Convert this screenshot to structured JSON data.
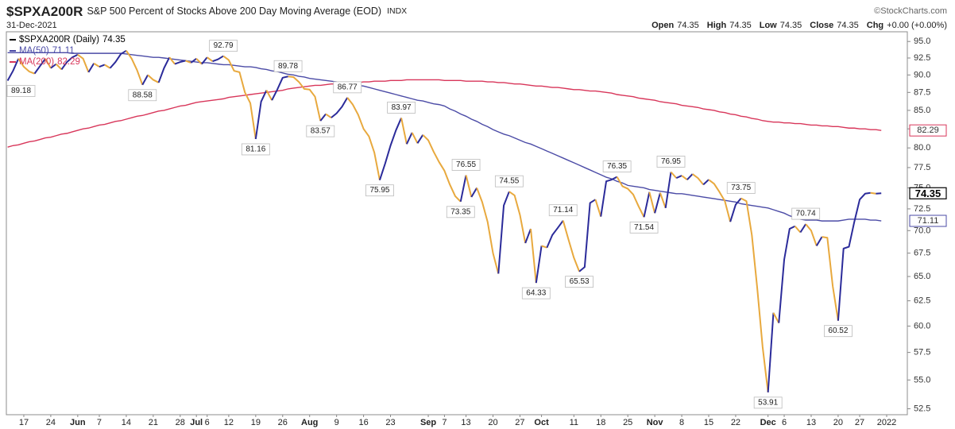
{
  "chart_data": {
    "type": "line",
    "symbol": "$SPXA200R",
    "title": "S&P 500 Percent of Stocks Above 200 Day Moving Average (EOD)",
    "exchange": "INDX",
    "date": "31-Dec-2021",
    "source": "©StockCharts.com",
    "quote": [
      {
        "label": "Open",
        "value": 74.35
      },
      {
        "label": "High",
        "value": 74.35
      },
      {
        "label": "Low",
        "value": 74.35
      },
      {
        "label": "Close",
        "value": 74.35
      },
      {
        "label": "Chg",
        "value": "+0.00 (+0.00%)"
      }
    ],
    "log_scale": true,
    "grid": false,
    "legend": "top-left",
    "ylim": [
      52,
      96.5
    ],
    "yticks": [
      {
        "value": 95,
        "label": "95.0"
      },
      92.5,
      {
        "value": 90,
        "label": "90.0"
      },
      87.5,
      {
        "value": 85,
        "label": "85.0"
      },
      82.5,
      {
        "value": 80,
        "label": "80.0"
      },
      77.5,
      {
        "value": 75,
        "label": "75.0"
      },
      72.5,
      {
        "value": 70,
        "label": "70.0"
      },
      67.5,
      {
        "value": 65,
        "label": "65.0"
      },
      62.5,
      {
        "value": 60,
        "label": "60.0"
      },
      57.5,
      {
        "value": 55,
        "label": "55.0"
      },
      52.5
    ],
    "categories": [
      null,
      null,
      null,
      "17",
      null,
      null,
      null,
      null,
      "24",
      null,
      null,
      null,
      null,
      "Jun",
      null,
      null,
      null,
      "7",
      null,
      null,
      null,
      null,
      "14",
      null,
      null,
      null,
      null,
      "21",
      null,
      null,
      null,
      null,
      "28",
      null,
      null,
      "Jul",
      null,
      "6",
      null,
      null,
      null,
      "12",
      null,
      null,
      null,
      null,
      "19",
      null,
      null,
      null,
      null,
      "26",
      null,
      null,
      null,
      null,
      "Aug",
      null,
      null,
      null,
      null,
      "9",
      null,
      null,
      null,
      null,
      "16",
      null,
      null,
      null,
      null,
      "23",
      null,
      null,
      null,
      null,
      null,
      null,
      "Sep",
      null,
      null,
      "7",
      null,
      null,
      null,
      "13",
      null,
      null,
      null,
      null,
      "20",
      null,
      null,
      null,
      null,
      "27",
      null,
      null,
      null,
      "Oct",
      null,
      null,
      null,
      null,
      null,
      "11",
      null,
      null,
      null,
      null,
      "18",
      null,
      null,
      null,
      null,
      "25",
      null,
      null,
      null,
      null,
      "Nov",
      null,
      null,
      null,
      null,
      "8",
      null,
      null,
      null,
      null,
      "15",
      null,
      null,
      null,
      null,
      "22",
      null,
      null,
      null,
      null,
      null,
      "Dec",
      null,
      null,
      "6",
      null,
      null,
      null,
      null,
      "13",
      null,
      null,
      null,
      null,
      "20",
      null,
      null,
      null,
      "27",
      null,
      null,
      null,
      null,
      "2022"
    ],
    "series": [
      {
        "name": "$SPXA200R (Daily)",
        "color": "#000000",
        "up_color": "#2b2b9a",
        "down_color": "#e8a93e",
        "values": [
          89.18,
          90.6,
          92.4,
          91.2,
          90.5,
          90.2,
          91.3,
          92.4,
          91.0,
          91.6,
          90.8,
          91.9,
          92.6,
          93.0,
          92.4,
          90.4,
          91.7,
          91.2,
          91.5,
          91.0,
          91.9,
          93.1,
          93.6,
          92.4,
          90.7,
          88.58,
          90.0,
          89.3,
          88.9,
          91.0,
          92.6,
          91.6,
          91.9,
          92.1,
          91.8,
          92.4,
          91.6,
          92.6,
          92.0,
          92.3,
          92.79,
          92.2,
          90.6,
          90.4,
          87.5,
          86.0,
          81.16,
          86.2,
          87.8,
          86.4,
          87.9,
          89.6,
          89.78,
          89.7,
          89.0,
          88.0,
          87.9,
          86.9,
          83.57,
          84.5,
          84.0,
          84.6,
          85.5,
          86.77,
          85.8,
          84.4,
          82.5,
          81.5,
          79.4,
          75.95,
          78.0,
          80.3,
          82.3,
          83.97,
          80.5,
          82.0,
          80.6,
          81.7,
          81.0,
          79.5,
          78.2,
          77.1,
          75.4,
          74.0,
          73.35,
          76.55,
          73.9,
          75.0,
          73.3,
          71.0,
          67.5,
          65.3,
          72.9,
          74.55,
          74.1,
          71.8,
          68.6,
          70.2,
          64.33,
          68.3,
          68.1,
          69.5,
          70.3,
          71.14,
          69.0,
          67.0,
          65.53,
          66.0,
          73.2,
          73.6,
          71.6,
          75.8,
          76.0,
          76.35,
          75.2,
          74.9,
          74.2,
          72.8,
          71.54,
          74.5,
          72.0,
          74.4,
          72.6,
          76.95,
          76.2,
          76.5,
          76.0,
          76.7,
          76.2,
          75.4,
          76.0,
          75.5,
          74.5,
          73.4,
          71.0,
          73.0,
          73.75,
          73.4,
          69.5,
          63.8,
          58.0,
          53.91,
          61.3,
          60.3,
          66.8,
          70.2,
          70.5,
          69.8,
          70.74,
          70.0,
          68.3,
          69.3,
          69.2,
          64.0,
          60.52,
          68.0,
          68.2,
          71.0,
          73.6,
          74.3,
          74.4,
          74.3,
          74.35,
          null
        ],
        "value_labels": [
          "89.18",
          null,
          null,
          null,
          null,
          null,
          null,
          null,
          null,
          null,
          null,
          null,
          null,
          null,
          null,
          null,
          null,
          null,
          null,
          null,
          null,
          null,
          null,
          null,
          null,
          "88.58",
          null,
          null,
          null,
          null,
          null,
          null,
          null,
          null,
          null,
          null,
          null,
          null,
          null,
          null,
          "92.79",
          null,
          null,
          null,
          null,
          null,
          "81.16",
          null,
          null,
          null,
          null,
          null,
          "89.78",
          null,
          null,
          null,
          null,
          null,
          "83.57",
          null,
          null,
          null,
          null,
          "86.77",
          null,
          null,
          null,
          null,
          null,
          "75.95",
          null,
          null,
          null,
          "83.97",
          null,
          null,
          null,
          null,
          null,
          null,
          null,
          null,
          null,
          null,
          "73.35",
          "76.55",
          null,
          null,
          null,
          null,
          null,
          null,
          null,
          "74.55",
          null,
          null,
          null,
          null,
          "64.33",
          null,
          null,
          null,
          null,
          "71.14",
          null,
          null,
          "65.53",
          null,
          null,
          null,
          null,
          null,
          null,
          "76.35",
          null,
          null,
          null,
          null,
          "71.54",
          null,
          null,
          null,
          null,
          "76.95",
          null,
          null,
          null,
          null,
          null,
          null,
          null,
          null,
          null,
          null,
          null,
          null,
          "73.75",
          null,
          null,
          null,
          null,
          "53.91",
          null,
          null,
          null,
          null,
          null,
          null,
          "70.74",
          null,
          null,
          null,
          null,
          null,
          "60.52",
          null,
          null,
          null,
          null,
          null,
          null,
          null,
          null,
          null
        ]
      },
      {
        "name": "MA(50)",
        "color": "#4b4ba6",
        "values": [
          93.3,
          93.3,
          93.3,
          93.3,
          93.3,
          93.3,
          93.3,
          93.3,
          93.3,
          93.3,
          93.3,
          93.3,
          93.2,
          93.2,
          93.2,
          93.2,
          93.2,
          93.2,
          93.2,
          93.2,
          93.2,
          93.2,
          93.1,
          93.0,
          92.9,
          92.8,
          92.7,
          92.6,
          92.6,
          92.5,
          92.4,
          92.3,
          92.2,
          92.1,
          92.0,
          91.9,
          91.8,
          91.8,
          91.7,
          91.6,
          91.5,
          91.5,
          91.4,
          91.3,
          91.2,
          91.2,
          91.1,
          90.9,
          90.8,
          90.6,
          90.5,
          90.3,
          90.1,
          90.0,
          89.8,
          89.7,
          89.5,
          89.4,
          89.3,
          89.2,
          89.1,
          89.0,
          88.8,
          88.7,
          88.6,
          88.5,
          88.4,
          88.2,
          88.0,
          87.8,
          87.6,
          87.4,
          87.2,
          87.0,
          86.8,
          86.6,
          86.4,
          86.3,
          86.1,
          85.9,
          85.8,
          85.6,
          85.2,
          84.9,
          84.5,
          84.2,
          83.8,
          83.5,
          83.1,
          82.8,
          82.4,
          82.1,
          81.8,
          81.6,
          81.3,
          81.0,
          80.7,
          80.5,
          80.2,
          79.9,
          79.6,
          79.3,
          79.0,
          78.7,
          78.4,
          78.1,
          77.8,
          77.5,
          77.2,
          76.9,
          76.6,
          76.3,
          76.1,
          75.8,
          75.6,
          75.3,
          75.2,
          75.1,
          75.0,
          74.8,
          74.7,
          74.6,
          74.5,
          74.4,
          74.3,
          74.3,
          74.2,
          74.1,
          74.0,
          73.9,
          73.8,
          73.7,
          73.6,
          73.5,
          73.4,
          73.3,
          73.1,
          73.0,
          72.9,
          72.8,
          72.7,
          72.6,
          72.4,
          72.2,
          72.0,
          71.7,
          71.5,
          71.3,
          71.2,
          71.2,
          71.2,
          71.1,
          71.1,
          71.1,
          71.1,
          71.2,
          71.3,
          71.3,
          71.3,
          71.3,
          71.2,
          71.2,
          71.11,
          null
        ]
      },
      {
        "name": "MA(200)",
        "color": "#d8365a",
        "values": [
          80.1,
          80.3,
          80.4,
          80.6,
          80.8,
          80.9,
          81.1,
          81.3,
          81.4,
          81.6,
          81.8,
          81.9,
          82.1,
          82.3,
          82.5,
          82.6,
          82.8,
          83.0,
          83.1,
          83.3,
          83.5,
          83.6,
          83.8,
          84.0,
          84.2,
          84.3,
          84.5,
          84.7,
          84.9,
          85.0,
          85.2,
          85.4,
          85.6,
          85.7,
          85.9,
          86.1,
          86.2,
          86.3,
          86.4,
          86.5,
          86.6,
          86.8,
          86.9,
          87.0,
          87.1,
          87.2,
          87.3,
          87.4,
          87.5,
          87.6,
          87.7,
          87.8,
          88.0,
          88.1,
          88.2,
          88.3,
          88.4,
          88.5,
          88.5,
          88.6,
          88.7,
          88.7,
          88.8,
          88.8,
          88.9,
          88.9,
          89.0,
          89.0,
          89.1,
          89.1,
          89.1,
          89.2,
          89.2,
          89.2,
          89.3,
          89.3,
          89.3,
          89.3,
          89.3,
          89.3,
          89.3,
          89.2,
          89.2,
          89.2,
          89.2,
          89.1,
          89.1,
          89.1,
          89.1,
          89.0,
          89.0,
          88.9,
          88.9,
          88.8,
          88.7,
          88.7,
          88.6,
          88.5,
          88.4,
          88.4,
          88.3,
          88.2,
          88.2,
          88.1,
          88.0,
          87.9,
          87.9,
          87.8,
          87.7,
          87.7,
          87.6,
          87.5,
          87.4,
          87.2,
          87.1,
          87.0,
          86.9,
          86.7,
          86.6,
          86.5,
          86.4,
          86.2,
          86.1,
          86.0,
          85.9,
          85.7,
          85.6,
          85.5,
          85.4,
          85.2,
          85.1,
          85.0,
          84.8,
          84.7,
          84.5,
          84.4,
          84.2,
          84.1,
          83.9,
          83.8,
          83.6,
          83.5,
          83.4,
          83.4,
          83.3,
          83.3,
          83.2,
          83.2,
          83.1,
          83.0,
          83.0,
          82.9,
          82.9,
          82.8,
          82.8,
          82.7,
          82.6,
          82.6,
          82.5,
          82.5,
          82.4,
          82.4,
          82.29,
          null
        ]
      }
    ]
  }
}
